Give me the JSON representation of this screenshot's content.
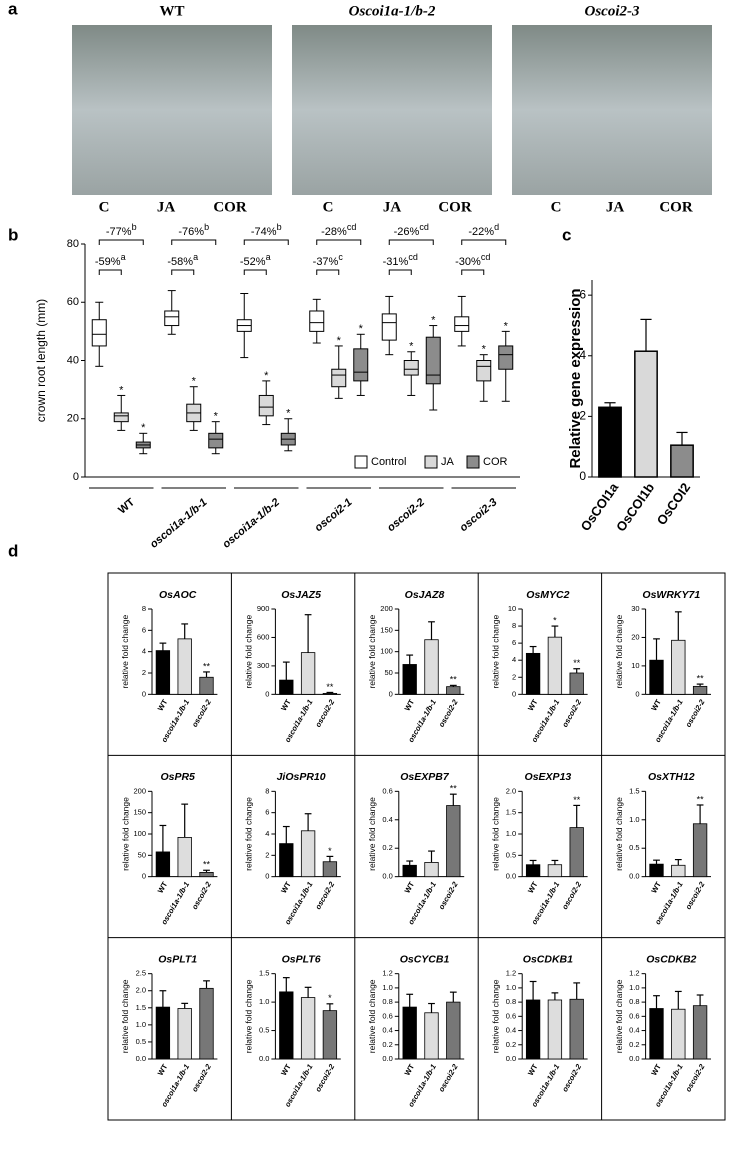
{
  "figure": {
    "panel_labels": [
      "a",
      "b",
      "c",
      "d"
    ],
    "photos": [
      {
        "title": "WT",
        "lanes": [
          "C",
          "JA",
          "COR"
        ]
      },
      {
        "title": "Oscoi1a-1/b-2",
        "lanes": [
          "C",
          "JA",
          "COR"
        ]
      },
      {
        "title": "Oscoi2-3",
        "lanes": [
          "C",
          "JA",
          "COR"
        ]
      }
    ]
  },
  "chart_data": [
    {
      "type": "box",
      "y_label": "crown root length (mm)",
      "ylim": [
        0,
        80
      ],
      "yticks": [
        0,
        20,
        40,
        60,
        80
      ],
      "categories": [
        "WT",
        "oscoi1a-1/b-1",
        "oscoi1a-1/b-2",
        "oscoi2-1",
        "oscoi2-2",
        "oscoi2-3"
      ],
      "series": [
        {
          "name": "Control",
          "color": "#ffffff",
          "min": [
            38,
            49,
            41,
            46,
            42,
            45
          ],
          "q1": [
            45,
            52,
            50,
            50,
            47,
            50
          ],
          "median": [
            49,
            55,
            52,
            53,
            53,
            52
          ],
          "q3": [
            54,
            57,
            54,
            57,
            56,
            55
          ],
          "max": [
            60,
            64,
            63,
            61,
            62,
            62
          ]
        },
        {
          "name": "JA",
          "color": "#d9d9d9",
          "min": [
            16,
            16,
            18,
            27,
            28,
            26
          ],
          "q1": [
            19,
            19,
            21,
            31,
            35,
            33
          ],
          "median": [
            21,
            22,
            24,
            35,
            37,
            38
          ],
          "q3": [
            22,
            25,
            28,
            37,
            40,
            40
          ],
          "max": [
            28,
            31,
            33,
            45,
            43,
            42
          ],
          "marks": [
            "*",
            "*",
            "*",
            "*",
            "*",
            "*"
          ]
        },
        {
          "name": "COR",
          "color": "#8c8c8c",
          "min": [
            8,
            8,
            9,
            28,
            23,
            26
          ],
          "q1": [
            10,
            10,
            11,
            33,
            32,
            37
          ],
          "median": [
            11,
            13,
            13,
            36,
            35,
            42
          ],
          "q3": [
            12,
            15,
            15,
            44,
            48,
            45
          ],
          "max": [
            15,
            19,
            20,
            49,
            52,
            50
          ],
          "marks": [
            "*",
            "*",
            "*",
            "*",
            "*",
            "*"
          ]
        }
      ],
      "brackets": [
        [
          {
            "text": "-59%",
            "letter": "a"
          },
          {
            "text": "-77%",
            "letter": "b"
          }
        ],
        [
          {
            "text": "-58%",
            "letter": "a"
          },
          {
            "text": "-76%",
            "letter": "b"
          }
        ],
        [
          {
            "text": "-52%",
            "letter": "a"
          },
          {
            "text": "-74%",
            "letter": "b"
          }
        ],
        [
          {
            "text": "-37%",
            "letter": "c"
          },
          {
            "text": "-28%",
            "letter": "cd"
          }
        ],
        [
          {
            "text": "-31%",
            "letter": "cd"
          },
          {
            "text": "-26%",
            "letter": "cd"
          }
        ],
        [
          {
            "text": "-30%",
            "letter": "cd"
          },
          {
            "text": "-22%",
            "letter": "d"
          }
        ]
      ]
    },
    {
      "type": "bar",
      "y_label": "Relative gene expression",
      "ylim": [
        0,
        6.5
      ],
      "yticks": [
        0,
        2,
        4,
        6
      ],
      "categories": [
        "OsCOI1a",
        "OsCOI1b",
        "OsCOI2"
      ],
      "colors": [
        "#000000",
        "#d9d9d9",
        "#8c8c8c"
      ],
      "values": [
        2.3,
        4.15,
        1.05
      ],
      "errors": [
        0.15,
        1.05,
        0.42
      ]
    },
    {
      "type": "bar",
      "title": "OsAOC",
      "y_label": "relative fold change",
      "ylim": [
        0,
        8
      ],
      "yticks": [
        0,
        2,
        4,
        6,
        8
      ],
      "categories": [
        "WT",
        "oscoi1a-1/b-1",
        "oscoi2-2"
      ],
      "colors": [
        "#000000",
        "#dddddd",
        "#777777"
      ],
      "values": [
        4.1,
        5.2,
        1.6
      ],
      "errors": [
        0.7,
        1.4,
        0.5
      ],
      "significance": [
        null,
        null,
        "**"
      ]
    },
    {
      "type": "bar",
      "title": "OsJAZ5",
      "y_label": "relative fold change",
      "ylim": [
        0,
        900
      ],
      "yticks": [
        0,
        300,
        600,
        900
      ],
      "categories": [
        "WT",
        "oscoi1a-1/b-1",
        "oscoi2-2"
      ],
      "colors": [
        "#000000",
        "#dddddd",
        "#777777"
      ],
      "values": [
        150,
        440,
        10
      ],
      "errors": [
        190,
        400,
        10
      ],
      "significance": [
        null,
        null,
        "**"
      ]
    },
    {
      "type": "bar",
      "title": "OsJAZ8",
      "y_label": "relative fold change",
      "ylim": [
        0,
        200
      ],
      "yticks": [
        0,
        50,
        100,
        150,
        200
      ],
      "categories": [
        "WT",
        "oscoi1a-1/b-1",
        "oscoi2-2"
      ],
      "colors": [
        "#000000",
        "#dddddd",
        "#777777"
      ],
      "values": [
        70,
        128,
        18
      ],
      "errors": [
        22,
        42,
        3
      ],
      "significance": [
        null,
        null,
        "**"
      ]
    },
    {
      "type": "bar",
      "title": "OsMYC2",
      "y_label": "relative fold change",
      "ylim": [
        0,
        10
      ],
      "yticks": [
        0,
        2,
        4,
        6,
        8,
        10
      ],
      "categories": [
        "WT",
        "oscoi1a-1/b-1",
        "oscoi2-2"
      ],
      "colors": [
        "#000000",
        "#dddddd",
        "#777777"
      ],
      "values": [
        4.8,
        6.7,
        2.5
      ],
      "errors": [
        0.8,
        1.3,
        0.5
      ],
      "significance": [
        null,
        "*",
        "**"
      ]
    },
    {
      "type": "bar",
      "title": "OsWRKY71",
      "y_label": "relative fold change",
      "ylim": [
        0,
        30
      ],
      "yticks": [
        0,
        10,
        20,
        30
      ],
      "categories": [
        "WT",
        "oscoi1a-1/b-1",
        "oscoi2-2"
      ],
      "colors": [
        "#000000",
        "#dddddd",
        "#777777"
      ],
      "values": [
        12,
        19,
        2.8
      ],
      "errors": [
        7.5,
        10,
        0.8
      ],
      "significance": [
        null,
        null,
        "**"
      ]
    },
    {
      "type": "bar",
      "title": "OsPR5",
      "y_label": "relative fold change",
      "ylim": [
        0,
        200
      ],
      "yticks": [
        0,
        50,
        100,
        150,
        200
      ],
      "categories": [
        "WT",
        "oscoi1a-1/b-1",
        "oscoi2-2"
      ],
      "colors": [
        "#000000",
        "#dddddd",
        "#777777"
      ],
      "values": [
        58,
        92,
        10
      ],
      "errors": [
        62,
        78,
        5
      ],
      "significance": [
        null,
        null,
        "**"
      ]
    },
    {
      "type": "bar",
      "title": "JiOsPR10",
      "y_label": "relative fold change",
      "ylim": [
        0,
        8
      ],
      "yticks": [
        0,
        2,
        4,
        6,
        8
      ],
      "categories": [
        "WT",
        "oscoi1a-1/b-1",
        "oscoi2-2"
      ],
      "colors": [
        "#000000",
        "#dddddd",
        "#777777"
      ],
      "values": [
        3.1,
        4.3,
        1.4
      ],
      "errors": [
        1.6,
        1.6,
        0.5
      ],
      "significance": [
        null,
        null,
        "*"
      ]
    },
    {
      "type": "bar",
      "title": "OsEXPB7",
      "y_label": "relative fold change",
      "ylim": [
        0,
        0.6
      ],
      "yticks": [
        {
          "value": 0,
          "label": "0.0"
        },
        0.2,
        0.4,
        0.6
      ],
      "categories": [
        "WT",
        "oscoi1a-1/b-1",
        "oscoi2-2"
      ],
      "colors": [
        "#000000",
        "#dddddd",
        "#777777"
      ],
      "values": [
        0.08,
        0.1,
        0.5
      ],
      "errors": [
        0.03,
        0.08,
        0.08
      ],
      "significance": [
        null,
        null,
        "**"
      ]
    },
    {
      "type": "bar",
      "title": "OsEXP13",
      "y_label": "relative fold change",
      "ylim": [
        0,
        2
      ],
      "yticks": [
        {
          "value": 0,
          "label": "0.0"
        },
        0.5,
        {
          "value": 1,
          "label": "1.0"
        },
        1.5,
        {
          "value": 2,
          "label": "2.0"
        }
      ],
      "categories": [
        "WT",
        "oscoi1a-1/b-1",
        "oscoi2-2"
      ],
      "colors": [
        "#000000",
        "#dddddd",
        "#777777"
      ],
      "values": [
        0.28,
        0.28,
        1.15
      ],
      "errors": [
        0.1,
        0.1,
        0.52
      ],
      "significance": [
        null,
        null,
        "**"
      ]
    },
    {
      "type": "bar",
      "title": "OsXTH12",
      "y_label": "relative fold change",
      "ylim": [
        0,
        1.5
      ],
      "yticks": [
        {
          "value": 0,
          "label": "0.0"
        },
        0.5,
        {
          "value": 1,
          "label": "1.0"
        },
        1.5
      ],
      "categories": [
        "WT",
        "oscoi1a-1/b-1",
        "oscoi2-2"
      ],
      "colors": [
        "#000000",
        "#dddddd",
        "#777777"
      ],
      "values": [
        0.22,
        0.2,
        0.93
      ],
      "errors": [
        0.07,
        0.1,
        0.33
      ],
      "significance": [
        null,
        null,
        "**"
      ]
    },
    {
      "type": "bar",
      "title": "OsPLT1",
      "y_label": "relative fold change",
      "ylim": [
        0,
        2.5
      ],
      "yticks": [
        {
          "value": 0,
          "label": "0.0"
        },
        0.5,
        {
          "value": 1,
          "label": "1.0"
        },
        1.5,
        {
          "value": 2,
          "label": "2.0"
        },
        2.5
      ],
      "categories": [
        "WT",
        "oscoi1a-1/b-1",
        "oscoi2-2"
      ],
      "colors": [
        "#000000",
        "#dddddd",
        "#777777"
      ],
      "values": [
        1.52,
        1.48,
        2.07
      ],
      "errors": [
        0.48,
        0.15,
        0.22
      ],
      "significance": [
        null,
        null,
        null
      ]
    },
    {
      "type": "bar",
      "title": "OsPLT6",
      "y_label": "relative fold change",
      "ylim": [
        0,
        1.5
      ],
      "yticks": [
        {
          "value": 0,
          "label": "0.0"
        },
        0.5,
        {
          "value": 1,
          "label": "1.0"
        },
        1.5
      ],
      "categories": [
        "WT",
        "oscoi1a-1/b-1",
        "oscoi2-2"
      ],
      "colors": [
        "#000000",
        "#dddddd",
        "#777777"
      ],
      "values": [
        1.18,
        1.08,
        0.85
      ],
      "errors": [
        0.25,
        0.18,
        0.12
      ],
      "significance": [
        null,
        null,
        "*"
      ]
    },
    {
      "type": "bar",
      "title": "OsCYCB1",
      "y_label": "relative fold change",
      "ylim": [
        0,
        1.2
      ],
      "yticks": [
        {
          "value": 0,
          "label": "0.0"
        },
        0.2,
        0.4,
        0.6,
        0.8,
        {
          "value": 1,
          "label": "1.0"
        },
        1.2
      ],
      "categories": [
        "WT",
        "oscoi1a-1/b-1",
        "oscoi2-2"
      ],
      "colors": [
        "#000000",
        "#dddddd",
        "#777777"
      ],
      "values": [
        0.73,
        0.65,
        0.8
      ],
      "errors": [
        0.18,
        0.13,
        0.14
      ],
      "significance": [
        null,
        null,
        null
      ]
    },
    {
      "type": "bar",
      "title": "OsCDKB1",
      "y_label": "relative fold change",
      "ylim": [
        0,
        1.2
      ],
      "yticks": [
        {
          "value": 0,
          "label": "0.0"
        },
        0.2,
        0.4,
        0.6,
        0.8,
        {
          "value": 1,
          "label": "1.0"
        },
        1.2
      ],
      "categories": [
        "WT",
        "oscoi1a-1/b-1",
        "oscoi2-2"
      ],
      "colors": [
        "#000000",
        "#dddddd",
        "#777777"
      ],
      "values": [
        0.83,
        0.83,
        0.84
      ],
      "errors": [
        0.26,
        0.1,
        0.23
      ],
      "significance": [
        null,
        null,
        null
      ]
    },
    {
      "type": "bar",
      "title": "OsCDKB2",
      "y_label": "relative fold change",
      "ylim": [
        0,
        1.2
      ],
      "yticks": [
        {
          "value": 0,
          "label": "0.0"
        },
        0.2,
        0.4,
        0.6,
        0.8,
        {
          "value": 1,
          "label": "1.0"
        },
        1.2
      ],
      "categories": [
        "WT",
        "oscoi1a-1/b-1",
        "oscoi2-2"
      ],
      "colors": [
        "#000000",
        "#dddddd",
        "#777777"
      ],
      "values": [
        0.71,
        0.7,
        0.75
      ],
      "errors": [
        0.18,
        0.25,
        0.15
      ],
      "significance": [
        null,
        null,
        null
      ]
    }
  ]
}
